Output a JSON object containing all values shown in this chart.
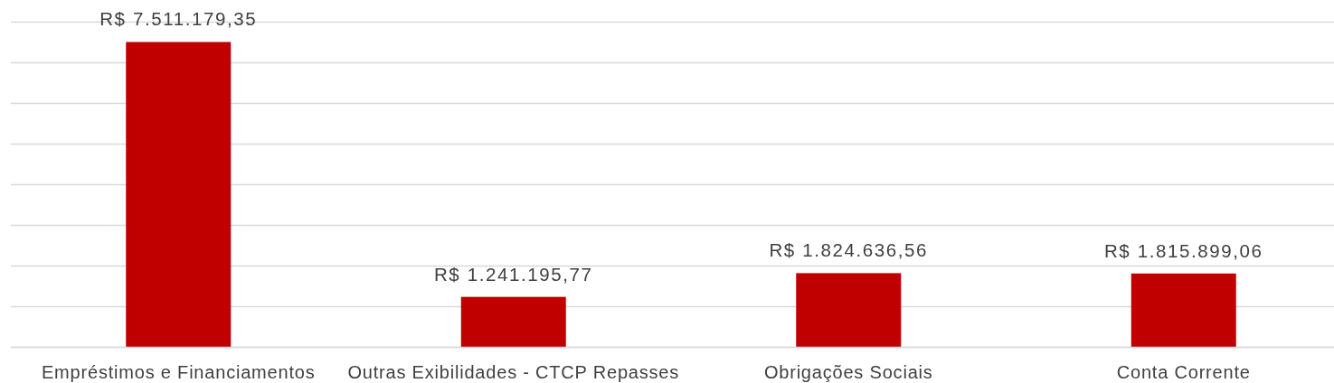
{
  "chart_data": {
    "type": "bar",
    "categories": [
      "Empréstimos e Financiamentos",
      "Outras Exibilidades - CTCP Repasses",
      "Obrigações Sociais",
      "Conta Corrente"
    ],
    "values": [
      7511179.35,
      1241195.77,
      1824636.56,
      1815899.06
    ],
    "value_labels": [
      "R$ 7.511.179,35",
      "R$ 1.241.195,77",
      "R$ 1.824.636,56",
      "R$ 1.815.899,06"
    ],
    "color": "#c00000",
    "ylim": [
      0,
      8000000
    ],
    "yticks": [
      {
        "value": 0,
        "label": null
      },
      {
        "value": 1000000,
        "label": null
      },
      {
        "value": 2000000,
        "label": null
      },
      {
        "value": 3000000,
        "label": null
      },
      {
        "value": 4000000,
        "label": null
      },
      {
        "value": 5000000,
        "label": null
      },
      {
        "value": 6000000,
        "label": null
      },
      {
        "value": 7000000,
        "label": null
      },
      {
        "value": 8000000,
        "label": null
      }
    ],
    "grid": "y",
    "tick_labels": "x"
  }
}
